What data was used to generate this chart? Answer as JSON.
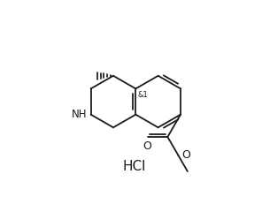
{
  "bg_color": "#ffffff",
  "line_color": "#1a1a1a",
  "line_width": 1.3,
  "font_size": 8,
  "hcl_text": "HCl",
  "stereo_text": "&1",
  "nh_text": "NH",
  "o1_text": "O",
  "o2_text": "O"
}
